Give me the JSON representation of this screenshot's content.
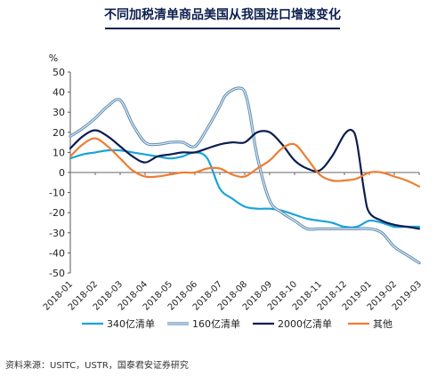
{
  "title": "不同加税清单商品美国从我国进口增速变化",
  "source": "资料来源：USITC，USTR，国泰君安证券研究",
  "chart_data": {
    "type": "line",
    "ylabel": "%",
    "ylim": [
      -50,
      50
    ],
    "yticks": [
      -50,
      -40,
      -30,
      -20,
      -10,
      0,
      10,
      20,
      30,
      40,
      50
    ],
    "categories": [
      "2018-01",
      "2018-02",
      "2018-03",
      "2018-04",
      "2018-05",
      "2018-06",
      "2018-07",
      "2018-08",
      "2018-09",
      "2018-10",
      "2018-11",
      "2018-12",
      "2019-01",
      "2019-02",
      "2019-03"
    ],
    "legend_position": "bottom",
    "grid": false,
    "series": [
      {
        "name": "340亿清单",
        "color": "#1aa3d9",
        "x": [
          0,
          0.5,
          1,
          1.5,
          2,
          2.5,
          3,
          3.5,
          4,
          4.5,
          5,
          5.5,
          6,
          6.5,
          7,
          7.5,
          8,
          8.5,
          9,
          9.5,
          10,
          10.5,
          11,
          11.5,
          12,
          12.5,
          13,
          13.5,
          14
        ],
        "y": [
          7,
          9,
          10,
          11,
          11,
          10,
          9,
          8,
          7,
          8,
          10,
          7,
          -8,
          -13,
          -17,
          -18,
          -18,
          -19,
          -21,
          -23,
          -24,
          -25,
          -27,
          -27,
          -24,
          -25,
          -27,
          -27,
          -27
        ]
      },
      {
        "name": "160亿清单",
        "color": "#8eb3cf",
        "x": [
          0,
          0.5,
          1,
          1.5,
          2,
          2.5,
          3,
          3.5,
          4,
          4.5,
          5,
          5.5,
          6,
          6.2,
          6.5,
          6.8,
          7,
          7.2,
          7.5,
          8,
          8.5,
          9,
          9.5,
          10,
          10.5,
          11,
          11.5,
          12,
          12.5,
          13,
          13.5,
          14
        ],
        "y": [
          18,
          22,
          27,
          33,
          36,
          24,
          15,
          14,
          15,
          15,
          13,
          22,
          33,
          38,
          41,
          42,
          40,
          30,
          8,
          -14,
          -20,
          -24,
          -28,
          -28,
          -28,
          -28,
          -28,
          -28,
          -30,
          -37,
          -41,
          -45
        ]
      },
      {
        "name": "2000亿清单",
        "color": "#0c1d4e",
        "x": [
          0,
          0.5,
          1,
          1.5,
          2,
          2.5,
          3,
          3.5,
          4,
          4.5,
          5,
          5.5,
          6,
          6.5,
          7,
          7.5,
          8,
          8.5,
          9,
          9.5,
          10,
          10.5,
          11,
          11.3,
          11.5,
          11.8,
          12,
          12.5,
          13,
          13.5,
          14
        ],
        "y": [
          12,
          18,
          21,
          18,
          13,
          8,
          5,
          8,
          9,
          10,
          10,
          12,
          14,
          15,
          15,
          20,
          20,
          14,
          6,
          2,
          1,
          8,
          19,
          21,
          15,
          -10,
          -20,
          -24,
          -26,
          -27,
          -28
        ]
      },
      {
        "name": "其他",
        "color": "#ee7d31",
        "x": [
          0,
          0.5,
          1,
          1.5,
          2,
          2.5,
          3,
          3.5,
          4,
          4.5,
          5,
          5.5,
          6,
          6.5,
          7,
          7.5,
          8,
          8.5,
          9,
          9.5,
          10,
          10.5,
          11,
          11.5,
          12,
          12.5,
          13,
          13.5,
          14
        ],
        "y": [
          8,
          14,
          17,
          13,
          7,
          1,
          -2,
          -2,
          -1,
          0,
          0,
          2,
          2,
          -1,
          -2,
          2,
          6,
          12,
          14,
          7,
          -1,
          -4,
          -4,
          -3,
          0,
          0,
          -2,
          -4,
          -7
        ]
      }
    ]
  }
}
